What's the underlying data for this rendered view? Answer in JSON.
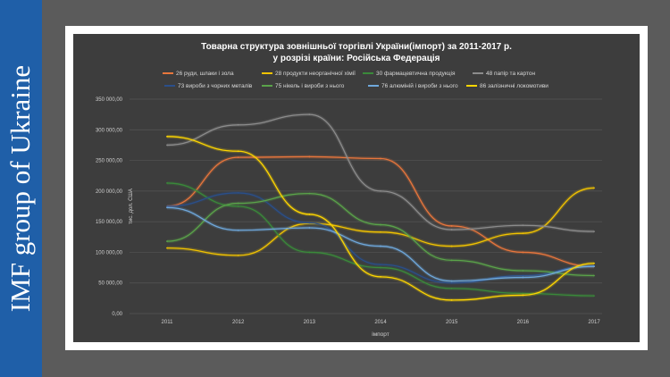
{
  "sidebar": {
    "title": "IMF group of Ukraine"
  },
  "chart_data": {
    "type": "line",
    "title": "Товарна  структура зовнішньої торгівлі України(імпорт) за  2011-2017 р.",
    "subtitle": "у розрізі країни: Російська Федерація",
    "xlabel": "імпорт",
    "ylabel": "тис. дол. США",
    "ylim": [
      0,
      350000
    ],
    "yticks": [
      "0,00",
      "50 000,00",
      "100 000,00",
      "150 000,00",
      "200 000,00",
      "250 000,00",
      "300 000,00",
      "350 000,00"
    ],
    "categories": [
      "2011",
      "2012",
      "2013",
      "2014",
      "2015",
      "2016",
      "2017"
    ],
    "legend_position": "top",
    "series": [
      {
        "name": "26 руди, шлаки і зола",
        "color": "#e8763c",
        "values": [
          175000,
          255000,
          256000,
          253000,
          143000,
          100000,
          77000
        ]
      },
      {
        "name": "28 продукти неорганічної хімії",
        "color": "#f2c300",
        "values": [
          107000,
          95000,
          147000,
          133000,
          110000,
          131000,
          205000
        ]
      },
      {
        "name": "30 фармацевтична продукція",
        "color": "#3a8a3a",
        "values": [
          213000,
          175000,
          100000,
          75000,
          41000,
          33000,
          29000
        ]
      },
      {
        "name": "48 папір та картон",
        "color": "#8c8c8c",
        "values": [
          275000,
          308000,
          325000,
          200000,
          137000,
          144000,
          134000
        ]
      },
      {
        "name": "73 вироби з чорних металів",
        "color": "#2a4f8a",
        "values": [
          175000,
          197000,
          148000,
          80000,
          50000,
          62000,
          78000
        ]
      },
      {
        "name": "75 нікель і вироби з нього",
        "color": "#5aa34a",
        "values": [
          118000,
          180000,
          196000,
          145000,
          87000,
          70000,
          62000
        ]
      },
      {
        "name": "76 алюміній і вироби з нього",
        "color": "#6fa8dc",
        "values": [
          173000,
          136000,
          140000,
          110000,
          53000,
          59000,
          77000
        ]
      },
      {
        "name": "86 залізничні  локомотиви",
        "color": "#ffd700",
        "values": [
          289000,
          265000,
          162000,
          60000,
          22000,
          30000,
          82000
        ]
      }
    ]
  }
}
